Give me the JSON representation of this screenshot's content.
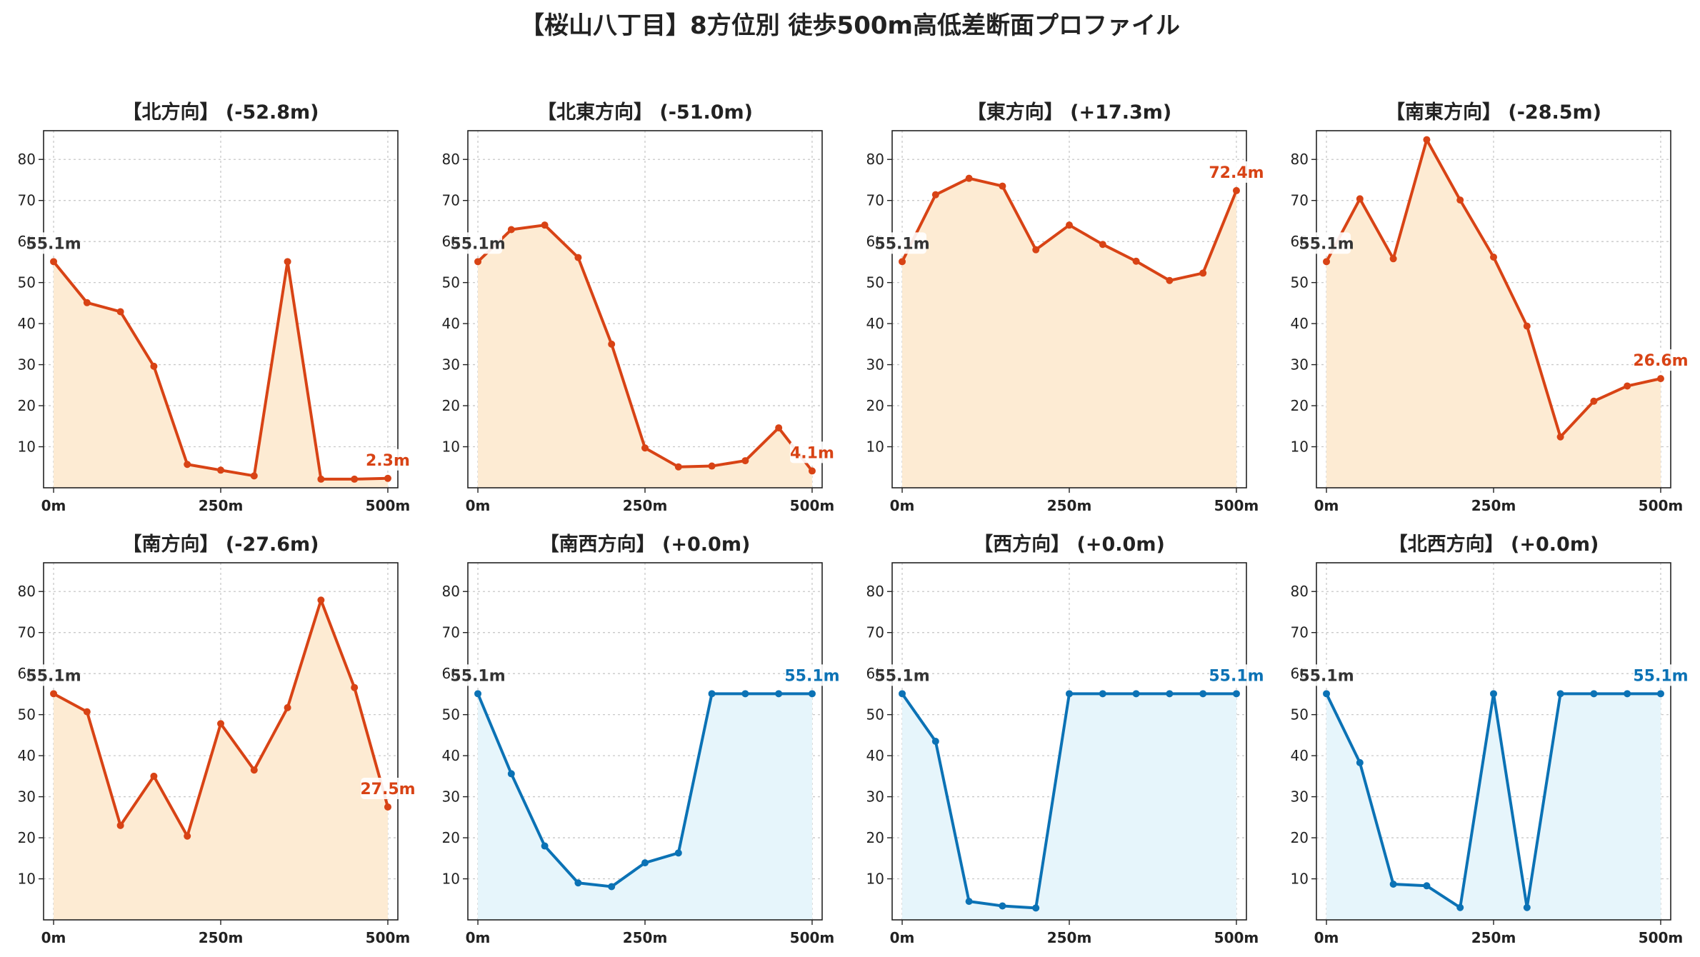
{
  "suptitle": "【桜山八丁目】8方位別 徒歩500m高低差断面プロファイル",
  "colors": {
    "down_line": "#d84315",
    "down_fill": "#fdebd3",
    "flat_line": "#0b72b5",
    "flat_fill": "#e6f5fb",
    "grid": "#c8c8c8",
    "start_label": "#333333"
  },
  "chart_data": [
    {
      "type": "line",
      "title": "【北方向】 (-52.8m)",
      "x": [
        0,
        50,
        100,
        150,
        200,
        250,
        300,
        350,
        400,
        450,
        500
      ],
      "values": [
        55.1,
        45.1,
        42.9,
        29.6,
        5.7,
        4.3,
        2.9,
        55.1,
        2.1,
        2.1,
        2.3
      ],
      "start_label": "55.1m",
      "end_label": "2.3m",
      "trend": "down",
      "xticks": [
        0,
        250,
        500
      ],
      "xtick_labels": [
        "0m",
        "250m",
        "500m"
      ],
      "yticks": [
        10,
        20,
        30,
        40,
        50,
        60,
        70,
        80
      ],
      "ylim": [
        0,
        87
      ],
      "xlim": [
        -15,
        515
      ],
      "grid": true
    },
    {
      "type": "line",
      "title": "【北東方向】 (-51.0m)",
      "x": [
        0,
        50,
        100,
        150,
        200,
        250,
        300,
        350,
        400,
        450,
        500
      ],
      "values": [
        55.1,
        62.9,
        64.0,
        56.1,
        35.0,
        9.7,
        5.1,
        5.3,
        6.6,
        14.6,
        4.1
      ],
      "start_label": "55.1m",
      "end_label": "4.1m",
      "trend": "down",
      "xticks": [
        0,
        250,
        500
      ],
      "xtick_labels": [
        "0m",
        "250m",
        "500m"
      ],
      "yticks": [
        10,
        20,
        30,
        40,
        50,
        60,
        70,
        80
      ],
      "ylim": [
        0,
        87
      ],
      "xlim": [
        -15,
        515
      ],
      "grid": true
    },
    {
      "type": "line",
      "title": "【東方向】 (+17.3m)",
      "x": [
        0,
        50,
        100,
        150,
        200,
        250,
        300,
        350,
        400,
        450,
        500
      ],
      "values": [
        55.1,
        71.4,
        75.4,
        73.5,
        58.0,
        64.0,
        59.3,
        55.2,
        50.5,
        52.3,
        72.4
      ],
      "start_label": "55.1m",
      "end_label": "72.4m",
      "trend": "down",
      "xticks": [
        0,
        250,
        500
      ],
      "xtick_labels": [
        "0m",
        "250m",
        "500m"
      ],
      "yticks": [
        10,
        20,
        30,
        40,
        50,
        60,
        70,
        80
      ],
      "ylim": [
        0,
        87
      ],
      "xlim": [
        -15,
        515
      ],
      "grid": true
    },
    {
      "type": "line",
      "title": "【南東方向】 (-28.5m)",
      "x": [
        0,
        50,
        100,
        150,
        200,
        250,
        300,
        350,
        400,
        450,
        500
      ],
      "values": [
        55.1,
        70.4,
        55.8,
        84.8,
        70.1,
        56.2,
        39.4,
        12.4,
        21.1,
        24.8,
        26.6
      ],
      "start_label": "55.1m",
      "end_label": "26.6m",
      "trend": "down",
      "xticks": [
        0,
        250,
        500
      ],
      "xtick_labels": [
        "0m",
        "250m",
        "500m"
      ],
      "yticks": [
        10,
        20,
        30,
        40,
        50,
        60,
        70,
        80
      ],
      "ylim": [
        0,
        87
      ],
      "xlim": [
        -15,
        515
      ],
      "grid": true
    },
    {
      "type": "line",
      "title": "【南方向】 (-27.6m)",
      "x": [
        0,
        50,
        100,
        150,
        200,
        250,
        300,
        350,
        400,
        450,
        500
      ],
      "values": [
        55.1,
        50.7,
        23.0,
        35.0,
        20.4,
        47.8,
        36.5,
        51.7,
        77.9,
        56.6,
        27.5
      ],
      "start_label": "55.1m",
      "end_label": "27.5m",
      "trend": "down",
      "xticks": [
        0,
        250,
        500
      ],
      "xtick_labels": [
        "0m",
        "250m",
        "500m"
      ],
      "yticks": [
        10,
        20,
        30,
        40,
        50,
        60,
        70,
        80
      ],
      "ylim": [
        0,
        87
      ],
      "xlim": [
        -15,
        515
      ],
      "grid": true
    },
    {
      "type": "line",
      "title": "【南西方向】 (+0.0m)",
      "x": [
        0,
        50,
        100,
        150,
        200,
        250,
        300,
        350,
        400,
        450,
        500
      ],
      "values": [
        55.1,
        35.6,
        18.0,
        9.0,
        8.1,
        13.9,
        16.3,
        55.1,
        55.1,
        55.1,
        55.1
      ],
      "start_label": "55.1m",
      "end_label": "55.1m",
      "trend": "flat",
      "xticks": [
        0,
        250,
        500
      ],
      "xtick_labels": [
        "0m",
        "250m",
        "500m"
      ],
      "yticks": [
        10,
        20,
        30,
        40,
        50,
        60,
        70,
        80
      ],
      "ylim": [
        0,
        87
      ],
      "xlim": [
        -15,
        515
      ],
      "grid": true
    },
    {
      "type": "line",
      "title": "【西方向】 (+0.0m)",
      "x": [
        0,
        50,
        100,
        150,
        200,
        250,
        300,
        350,
        400,
        450,
        500
      ],
      "values": [
        55.1,
        43.5,
        4.5,
        3.4,
        2.9,
        55.1,
        55.1,
        55.1,
        55.1,
        55.1,
        55.1
      ],
      "start_label": "55.1m",
      "end_label": "55.1m",
      "trend": "flat",
      "xticks": [
        0,
        250,
        500
      ],
      "xtick_labels": [
        "0m",
        "250m",
        "500m"
      ],
      "yticks": [
        10,
        20,
        30,
        40,
        50,
        60,
        70,
        80
      ],
      "ylim": [
        0,
        87
      ],
      "xlim": [
        -15,
        515
      ],
      "grid": true
    },
    {
      "type": "line",
      "title": "【北西方向】 (+0.0m)",
      "x": [
        0,
        50,
        100,
        150,
        200,
        250,
        300,
        350,
        400,
        450,
        500
      ],
      "values": [
        55.1,
        38.3,
        8.7,
        8.3,
        3.0,
        55.1,
        3.0,
        55.1,
        55.1,
        55.1,
        55.1
      ],
      "start_label": "55.1m",
      "end_label": "55.1m",
      "trend": "flat",
      "xticks": [
        0,
        250,
        500
      ],
      "xtick_labels": [
        "0m",
        "250m",
        "500m"
      ],
      "yticks": [
        10,
        20,
        30,
        40,
        50,
        60,
        70,
        80
      ],
      "ylim": [
        0,
        87
      ],
      "xlim": [
        -15,
        515
      ],
      "grid": true
    }
  ]
}
